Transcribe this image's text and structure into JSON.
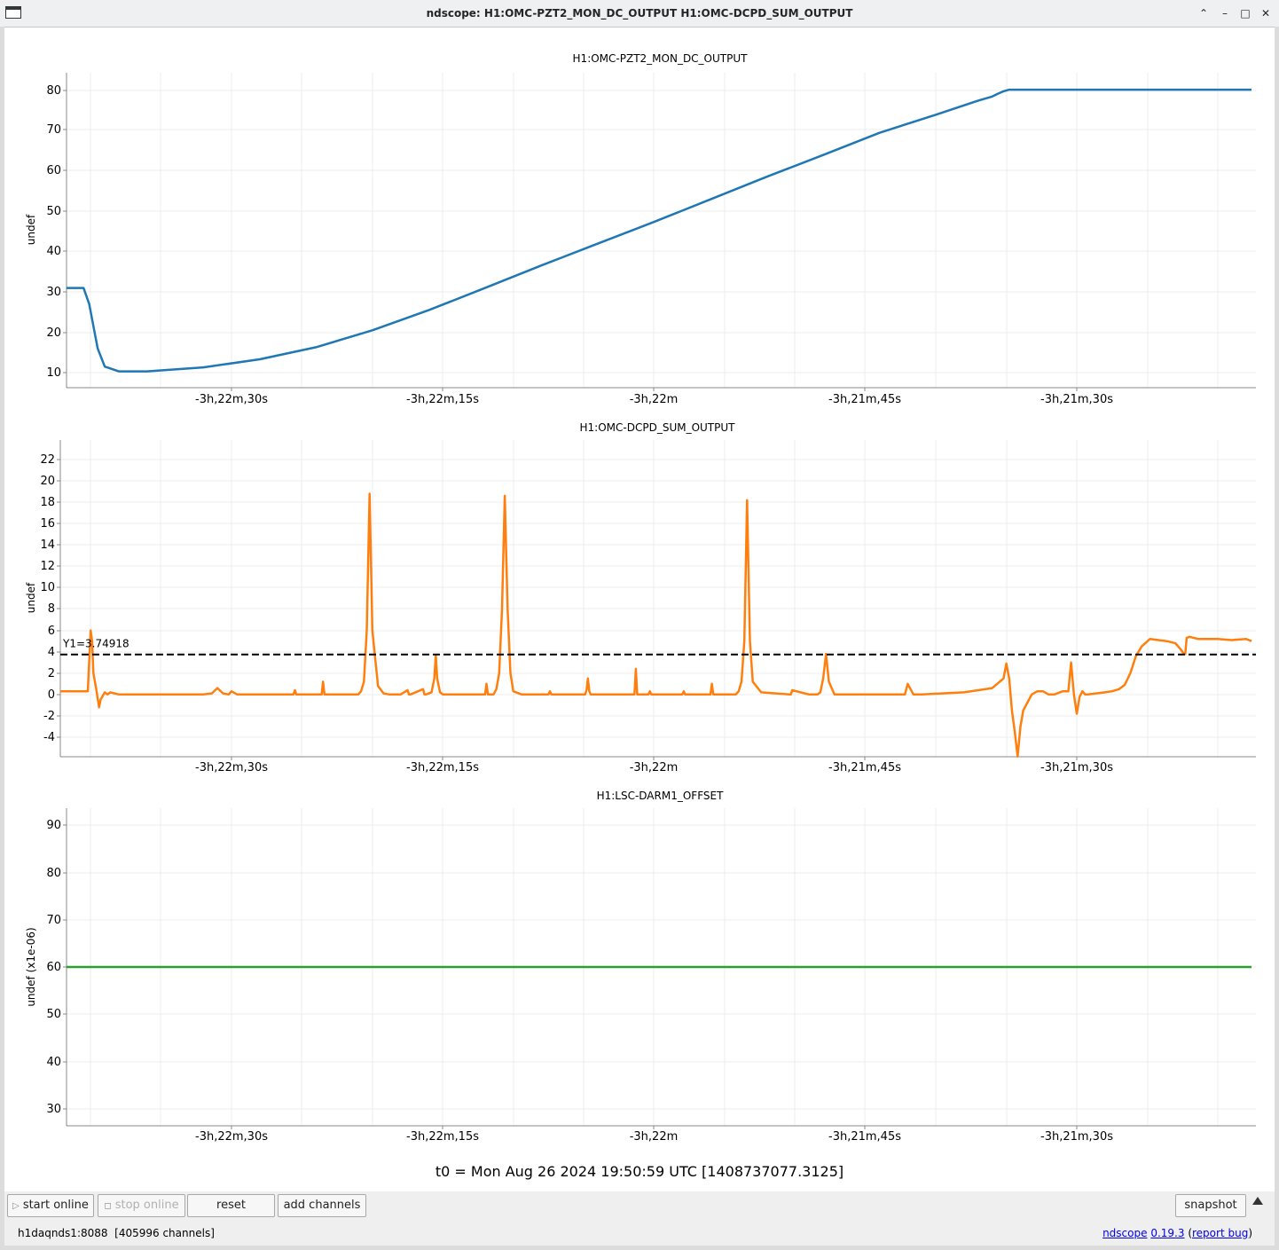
{
  "window": {
    "title": "ndscope: H1:OMC-PZT2_MON_DC_OUTPUT H1:OMC-DCPD_SUM_OUTPUT",
    "icon": "app-window-icon",
    "controls": [
      "chevron-up-icon",
      "minimize-icon",
      "maximize-icon",
      "close-icon"
    ]
  },
  "plots": [
    {
      "title": "H1:OMC-PZT2_MON_DC_OUTPUT",
      "ylabel": "undef",
      "color": "#1f77b4",
      "yticks": [
        "80",
        "70",
        "60",
        "50",
        "40",
        "30",
        "20",
        "10"
      ],
      "xticks": [
        "-3h,22m,30s",
        "-3h,22m,15s",
        "-3h,22m",
        "-3h,21m,45s",
        "-3h,21m,30s"
      ]
    },
    {
      "title": "H1:OMC-DCPD_SUM_OUTPUT",
      "ylabel": "undef",
      "color": "#ff7f0e",
      "yticks": [
        "22",
        "20",
        "18",
        "16",
        "14",
        "12",
        "10",
        "8",
        "6",
        "4",
        "2",
        "0",
        "-2",
        "-4"
      ],
      "xticks": [
        "-3h,22m,30s",
        "-3h,22m,15s",
        "-3h,22m",
        "-3h,21m,45s",
        "-3h,21m,30s"
      ],
      "cursor_label": "Y1=3.74918",
      "cursor_value": 3.74918
    },
    {
      "title": "H1:LSC-DARM1_OFFSET",
      "ylabel": "undef (x1e-06)",
      "color": "#2ca02c",
      "yticks": [
        "90",
        "80",
        "70",
        "60",
        "50",
        "40",
        "30"
      ],
      "xticks": [
        "-3h,22m,30s",
        "-3h,22m,15s",
        "-3h,22m",
        "-3h,21m,45s",
        "-3h,21m,30s"
      ],
      "value": 60
    }
  ],
  "t0_label": "t0 = Mon Aug 26 2024 19:50:59 UTC [1408737077.3125]",
  "toolbar": {
    "start_online": "start online",
    "stop_online": "stop online",
    "reset": "reset",
    "add_channels": "add channels",
    "snapshot": "snapshot"
  },
  "status": {
    "server": "h1daqnds1:8088  [405996 channels]",
    "app_name": "ndscope",
    "version": "0.19.3",
    "report_bug": "report bug"
  },
  "chart_data": [
    {
      "type": "line",
      "title": "H1:OMC-PZT2_MON_DC_OUTPUT",
      "xlabel": "",
      "ylabel": "undef",
      "x_ticks": [
        "-3h,22m,30s",
        "-3h,22m,15s",
        "-3h,22m",
        "-3h,21m,45s",
        "-3h,21m,30s"
      ],
      "x_tick_seconds": [
        -12150,
        -12135,
        -12120,
        -12105,
        -12090
      ],
      "ylim": [
        7,
        84
      ],
      "grid": true,
      "series": [
        {
          "color": "#1f77b4",
          "x": [
            -12162.2,
            -12160.5,
            -12160.1,
            -12159.5,
            -12159.0,
            -12158.0,
            -12156.0,
            -12152.0,
            -12148.0,
            -12144.0,
            -12140.0,
            -12136.0,
            -12132.0,
            -12128.0,
            -12124.0,
            -12120.0,
            -12116.0,
            -12112.0,
            -12108.0,
            -12104.0,
            -12100.0,
            -12097.0,
            -12096.0,
            -12095.6,
            -12095.2,
            -12094.8,
            -12094.2,
            -12093.0,
            -12092.5,
            -12092.0,
            -12091.5,
            -12090.0,
            -12085.0,
            -12080.0,
            -12077.6
          ],
          "y": [
            31,
            31,
            27,
            16,
            11.5,
            10.3,
            10.3,
            11.3,
            13.3,
            16.3,
            20.5,
            25.5,
            31.0,
            36.6,
            42.0,
            47.4,
            53.0,
            58.6,
            64.0,
            69.5,
            74.0,
            77.5,
            78.5,
            79.2,
            79.8,
            80.2,
            80.2,
            80.2,
            80.2,
            80.2,
            80.2,
            80.2,
            80.2,
            80.2,
            80.2
          ]
        }
      ]
    },
    {
      "type": "line",
      "title": "H1:OMC-DCPD_SUM_OUTPUT",
      "xlabel": "",
      "ylabel": "undef",
      "x_ticks": [
        "-3h,22m,30s",
        "-3h,22m,15s",
        "-3h,22m",
        "-3h,21m,45s",
        "-3h,21m,30s"
      ],
      "x_tick_seconds": [
        -12150,
        -12135,
        -12120,
        -12105,
        -12090
      ],
      "ylim": [
        -5.8,
        23.8
      ],
      "grid": true,
      "cursor": {
        "label": "Y1=3.74918",
        "y": 3.74918
      },
      "series": [
        {
          "color": "#ff7f0e",
          "x": [
            -12162.2,
            -12160.2,
            -12160.0,
            -12159.9,
            -12159.8,
            -12159.6,
            -12159.4,
            -12159.3,
            -12159.0,
            -12158.8,
            -12158.6,
            -12158.0,
            -12152.0,
            -12151.4,
            -12151.0,
            -12150.6,
            -12150.2,
            -12150.0,
            -12149.6,
            -12147.0,
            -12145.6,
            -12145.5,
            -12145.4,
            -12143.6,
            -12143.5,
            -12143.4,
            -12141.0,
            -12140.8,
            -12140.6,
            -12140.4,
            -12140.2,
            -12140.0,
            -12139.6,
            -12139.2,
            -12138.8,
            -12138.0,
            -12137.5,
            -12137.4,
            -12137.3,
            -12136.4,
            -12136.3,
            -12136.2,
            -12135.8,
            -12135.6,
            -12135.5,
            -12135.4,
            -12135.2,
            -12135.0,
            -12132.0,
            -12131.9,
            -12131.8,
            -12131.4,
            -12131.2,
            -12131.0,
            -12130.8,
            -12130.6,
            -12130.4,
            -12130.2,
            -12130.0,
            -12129.4,
            -12127.5,
            -12127.4,
            -12127.3,
            -12124.9,
            -12124.8,
            -12124.7,
            -12124.6,
            -12124.5,
            -12124.4,
            -12121.4,
            -12121.3,
            -12121.2,
            -12120.4,
            -12120.3,
            -12120.2,
            -12118.0,
            -12117.9,
            -12117.8,
            -12116.0,
            -12115.9,
            -12115.8,
            -12114.2,
            -12114.0,
            -12113.8,
            -12113.6,
            -12113.4,
            -12113.2,
            -12113.0,
            -12112.4,
            -12110.4,
            -12110.3,
            -12110.2,
            -12109.0,
            -12108.4,
            -12108.2,
            -12108.0,
            -12107.8,
            -12107.6,
            -12107.2,
            -12102.4,
            -12102.2,
            -12102.0,
            -12101.6,
            -12101.0,
            -12098.0,
            -12096.0,
            -12095.2,
            -12095.0,
            -12094.8,
            -12094.6,
            -12094.4,
            -12094.2,
            -12094.0,
            -12093.8,
            -12093.6,
            -12093.2,
            -12092.8,
            -12092.4,
            -12092.0,
            -12091.6,
            -12091.0,
            -12090.6,
            -12090.4,
            -12090.2,
            -12090.0,
            -12089.8,
            -12089.6,
            -12089.4,
            -12089.2,
            -12088.0,
            -12087.5,
            -12087.0,
            -12086.6,
            -12086.2,
            -12085.8,
            -12085.4,
            -12084.8,
            -12084.2,
            -12083.6,
            -12083.0,
            -12082.6,
            -12082.4,
            -12082.3,
            -12082.2,
            -12082.0,
            -12081.4,
            -12081.0,
            -12080.0,
            -12079.0,
            -12078.0,
            -12077.6
          ],
          "y": [
            0.3,
            0.3,
            6.0,
            5.0,
            2.0,
            0.5,
            -1.2,
            -0.5,
            0.2,
            0.0,
            0.2,
            0.0,
            0.0,
            0.1,
            0.6,
            0.1,
            0.0,
            0.3,
            0.0,
            0.0,
            0.0,
            0.4,
            0.0,
            0.0,
            1.2,
            0.0,
            0.0,
            0.3,
            1.2,
            6.0,
            18.8,
            6.0,
            0.8,
            0.1,
            0.0,
            0.0,
            0.4,
            0.0,
            0.0,
            0.5,
            0.0,
            0.0,
            0.2,
            1.5,
            3.7,
            1.5,
            0.2,
            0.0,
            0.0,
            1.0,
            0.0,
            0.0,
            0.5,
            2.0,
            8.0,
            18.6,
            8.0,
            2.0,
            0.3,
            0.0,
            0.0,
            0.3,
            0.0,
            0.0,
            0.4,
            1.5,
            0.3,
            0.0,
            0.0,
            0.0,
            2.4,
            0.0,
            0.0,
            0.3,
            0.0,
            0.0,
            0.3,
            0.0,
            0.0,
            1.0,
            0.0,
            0.0,
            0.3,
            1.2,
            5.0,
            18.2,
            5.0,
            1.2,
            0.2,
            0.0,
            0.0,
            0.4,
            0.0,
            0.0,
            0.2,
            1.5,
            3.8,
            1.2,
            0.0,
            0.0,
            0.0,
            1.0,
            0.0,
            0.0,
            0.2,
            0.6,
            1.5,
            2.9,
            1.5,
            -1.5,
            -3.5,
            -5.8,
            -3.0,
            -1.5,
            -1.0,
            0.0,
            0.3,
            0.3,
            0.0,
            0.0,
            0.3,
            0.3,
            3.0,
            0.0,
            -1.8,
            -0.2,
            0.3,
            0.0,
            0.0,
            0.2,
            0.3,
            0.5,
            0.9,
            2.0,
            3.6,
            4.5,
            5.2,
            5.1,
            5.0,
            4.8,
            4.2,
            3.8,
            3.8,
            5.3,
            5.4,
            5.2,
            5.2,
            5.2,
            5.1,
            5.2,
            5.0
          ],
          "note": ""
        }
      ]
    },
    {
      "type": "line",
      "title": "H1:LSC-DARM1_OFFSET",
      "xlabel": "",
      "ylabel": "undef (x1e-06)",
      "x_ticks": [
        "-3h,22m,30s",
        "-3h,22m,15s",
        "-3h,22m",
        "-3h,21m,45s",
        "-3h,21m,30s"
      ],
      "x_tick_seconds": [
        -12150,
        -12135,
        -12120,
        -12105,
        -12090
      ],
      "ylim": [
        25.5,
        93.2
      ],
      "grid": true,
      "series": [
        {
          "color": "#2ca02c",
          "x": [
            -12162.2,
            -12077.6
          ],
          "y": [
            60,
            60
          ]
        }
      ]
    }
  ]
}
